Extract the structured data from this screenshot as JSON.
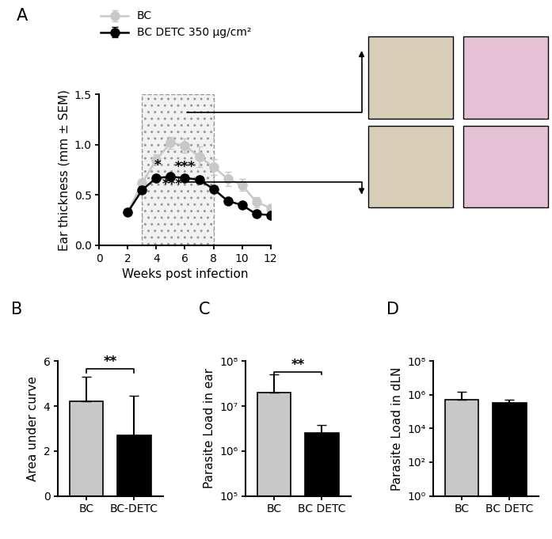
{
  "chart_data": [
    {
      "panel": "A",
      "type": "line",
      "x": [
        2,
        3,
        4,
        5,
        6,
        7,
        8,
        9,
        10,
        11,
        12
      ],
      "series": [
        {
          "name": "BC",
          "color": "#c8c8c8",
          "marker": "circle",
          "values": [
            0.33,
            0.62,
            0.85,
            1.02,
            0.99,
            0.88,
            0.78,
            0.66,
            0.6,
            0.43,
            0.37
          ],
          "errors": [
            0.02,
            0.04,
            0.05,
            0.06,
            0.07,
            0.1,
            0.08,
            0.07,
            0.06,
            0.05,
            0.03
          ]
        },
        {
          "name": "BC DETC 350 µg/cm²",
          "color": "#000000",
          "marker": "circle",
          "values": [
            0.33,
            0.55,
            0.67,
            0.68,
            0.67,
            0.65,
            0.56,
            0.44,
            0.4,
            0.31,
            0.3
          ],
          "errors": [
            0.02,
            0.03,
            0.03,
            0.03,
            0.03,
            0.03,
            0.03,
            0.02,
            0.02,
            0.02,
            0.02
          ]
        }
      ],
      "shaded_range": [
        3,
        8
      ],
      "annotations": [
        {
          "text": "*",
          "x": 4.1,
          "y": 0.72
        },
        {
          "text": "***",
          "x": 6.0,
          "y": 0.71
        },
        {
          "text": "***",
          "x": 5.1,
          "y": 0.53
        }
      ],
      "xlabel": "Weeks post infection",
      "ylabel": "Ear thickness (mm ± SEM)",
      "xlim": [
        0,
        12
      ],
      "xticks": [
        0,
        2,
        4,
        6,
        8,
        10,
        12
      ],
      "ylim": [
        0,
        1.5
      ],
      "yticks": [
        {
          "value": 0,
          "label": "0.0"
        },
        0.5,
        {
          "value": 1,
          "label": "1.0"
        },
        1.5
      ],
      "legend": "upper left"
    },
    {
      "panel": "B",
      "type": "bar",
      "categories": [
        "BC",
        "BC-DETC"
      ],
      "values": [
        4.2,
        2.7
      ],
      "errors": [
        1.1,
        1.75
      ],
      "colors": [
        "#c8c8c8",
        "#000000"
      ],
      "ylabel": "Area under curve",
      "ylim": [
        0,
        6
      ],
      "yticks": [
        0,
        2,
        4,
        6
      ],
      "annotations": [
        "**"
      ]
    },
    {
      "panel": "C",
      "type": "bar",
      "log": "y",
      "categories": [
        "BC",
        "BC DETC"
      ],
      "values": [
        20000000,
        2500000
      ],
      "errors": [
        30000000,
        1300000
      ],
      "colors": [
        "#c8c8c8",
        "#000000"
      ],
      "ylabel": "Parasite Load in ear",
      "ylim": [
        100000,
        100000000
      ],
      "yticks": [
        {
          "value": 100000,
          "label": "10⁵"
        },
        {
          "value": 1000000,
          "label": "10⁶"
        },
        {
          "value": 10000000,
          "label": "10⁷"
        },
        {
          "value": 100000000,
          "label": "10⁸"
        }
      ],
      "annotations": [
        "**"
      ]
    },
    {
      "panel": "D",
      "type": "bar",
      "log": "y",
      "categories": [
        "BC",
        "BC DETC"
      ],
      "values": [
        500000,
        350000
      ],
      "errors": [
        1000000,
        150000
      ],
      "colors": [
        "#c8c8c8",
        "#000000"
      ],
      "ylabel": "Parasite Load in dLN",
      "ylim": [
        1,
        100000000
      ],
      "yticks": [
        {
          "value": 1,
          "label": "10⁰"
        },
        {
          "value": 100,
          "label": "10²"
        },
        {
          "value": 10000,
          "label": "10⁴"
        },
        {
          "value": 1000000,
          "label": "10⁶"
        },
        {
          "value": 100000000,
          "label": "10⁸"
        }
      ]
    }
  ]
}
